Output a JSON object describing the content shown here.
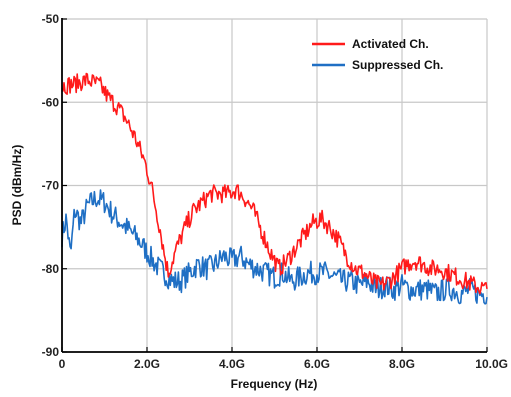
{
  "chart_data": {
    "type": "line",
    "title": "",
    "xlabel": "Frequency (Hz)",
    "ylabel": "PSD (dBm/Hz)",
    "xlim": [
      0,
      10
    ],
    "ylim": [
      -90,
      -50
    ],
    "x_ticks": [
      0,
      2,
      4,
      6,
      8,
      10
    ],
    "x_tick_labels": [
      "0",
      "2.0G",
      "4.0G",
      "6.0G",
      "8.0G",
      "10.0G"
    ],
    "y_ticks": [
      -90,
      -80,
      -70,
      -60,
      -50
    ],
    "y_tick_labels": [
      "-90",
      "-80",
      "-70",
      "-60",
      "-50"
    ],
    "grid": true,
    "legend_position": "top-right",
    "colors": {
      "activated": "#ff1a1a",
      "suppressed": "#1f6fc4",
      "grid": "#c8c8c8"
    },
    "series": [
      {
        "name": "Activated Ch.",
        "color": "#ff1a1a",
        "x": [
          0,
          0.3,
          0.6,
          0.9,
          1.1,
          1.3,
          1.5,
          1.7,
          1.9,
          2.0,
          2.1,
          2.2,
          2.3,
          2.4,
          2.5,
          2.7,
          2.9,
          3.1,
          3.3,
          3.5,
          3.7,
          3.9,
          4.1,
          4.3,
          4.5,
          4.7,
          4.9,
          5.1,
          5.3,
          5.5,
          5.7,
          5.9,
          6.1,
          6.3,
          6.5,
          6.7,
          6.9,
          7.1,
          7.3,
          7.5,
          7.7,
          7.9,
          8.1,
          8.3,
          8.5,
          8.7,
          8.9,
          9.1,
          9.3,
          9.5,
          9.7,
          10.0
        ],
        "y": [
          -58.0,
          -57.8,
          -57.3,
          -58.0,
          -59.5,
          -60.5,
          -62.0,
          -64.0,
          -66.5,
          -68.0,
          -70.0,
          -72.5,
          -75.0,
          -78.0,
          -80.5,
          -77.5,
          -75.0,
          -73.0,
          -72.0,
          -71.0,
          -71.0,
          -71.0,
          -70.5,
          -71.5,
          -73.0,
          -75.5,
          -78.0,
          -80.0,
          -79.0,
          -77.5,
          -76.0,
          -74.5,
          -74.0,
          -75.0,
          -76.5,
          -78.5,
          -80.0,
          -80.5,
          -81.5,
          -82.0,
          -81.5,
          -80.5,
          -79.5,
          -79.0,
          -79.5,
          -80.0,
          -80.0,
          -80.5,
          -81.0,
          -81.5,
          -82.0,
          -82.5
        ]
      },
      {
        "name": "Suppressed Ch.",
        "color": "#1f6fc4",
        "x": [
          0,
          0.1,
          0.2,
          0.3,
          0.45,
          0.6,
          0.8,
          1.0,
          1.2,
          1.4,
          1.6,
          1.8,
          2.0,
          2.2,
          2.4,
          2.6,
          2.8,
          3.0,
          3.2,
          3.4,
          3.6,
          3.8,
          4.0,
          4.2,
          4.4,
          4.6,
          4.8,
          5.0,
          5.2,
          5.4,
          5.6,
          5.8,
          6.0,
          6.2,
          6.4,
          6.6,
          6.8,
          7.0,
          7.2,
          7.4,
          7.6,
          7.8,
          8.0,
          8.2,
          8.4,
          8.6,
          8.8,
          9.0,
          9.2,
          9.4,
          9.6,
          9.8,
          10.0
        ],
        "y": [
          -76.0,
          -74.0,
          -78.5,
          -73.0,
          -74.5,
          -72.5,
          -71.5,
          -72.0,
          -73.5,
          -74.5,
          -75.5,
          -76.5,
          -78.0,
          -79.5,
          -80.5,
          -81.5,
          -81.5,
          -80.5,
          -79.5,
          -80.0,
          -79.5,
          -78.5,
          -79.0,
          -78.5,
          -79.5,
          -80.0,
          -80.5,
          -81.0,
          -80.5,
          -81.5,
          -81.0,
          -80.5,
          -80.5,
          -80.5,
          -81.0,
          -81.5,
          -81.5,
          -82.0,
          -81.5,
          -82.5,
          -82.0,
          -82.5,
          -82.0,
          -82.5,
          -82.5,
          -82.5,
          -83.0,
          -82.5,
          -82.5,
          -83.0,
          -82.5,
          -83.0,
          -83.0
        ]
      }
    ]
  }
}
